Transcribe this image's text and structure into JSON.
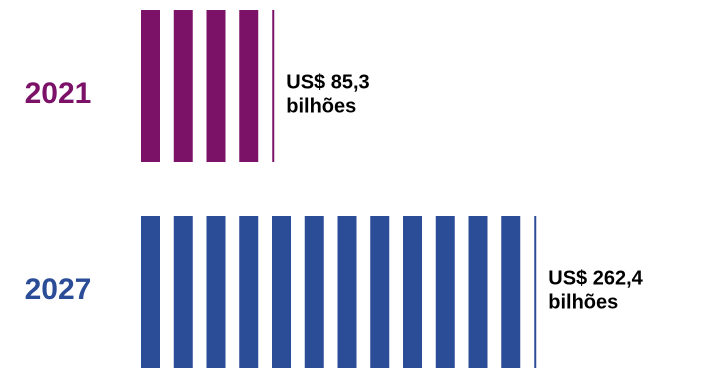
{
  "chart_data": {
    "type": "bar",
    "orientation": "horizontal",
    "unit_note": "each stripe ≈ US$ 21,3 bilhões",
    "categories": [
      "2021",
      "2027"
    ],
    "values": [
      85.3,
      262.4
    ],
    "value_labels": [
      [
        "US$ 85,3",
        "bilhões"
      ],
      [
        "US$ 262,4",
        "bilhões"
      ]
    ],
    "colors": [
      "#7b1268",
      "#2b4c97"
    ],
    "title": "",
    "xlabel": "",
    "ylabel": "",
    "grid": false,
    "legend": "none"
  }
}
